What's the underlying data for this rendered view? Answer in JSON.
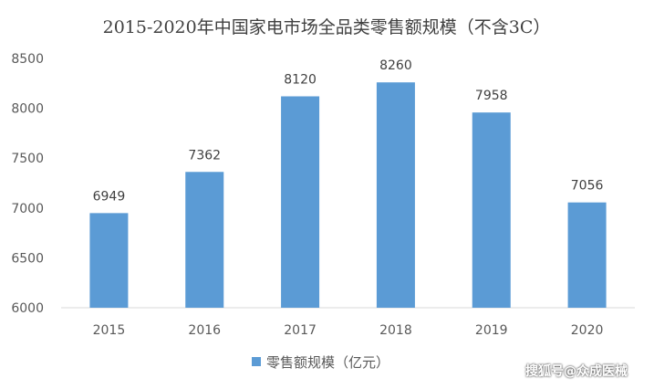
{
  "chart_data": {
    "type": "bar",
    "title": "2015-2020年中国家电市场全品类零售额规模（不含3C）",
    "categories": [
      "2015",
      "2016",
      "2017",
      "2018",
      "2019",
      "2020"
    ],
    "series": [
      {
        "name": "零售额规模（亿元）",
        "values": [
          6949,
          7362,
          8120,
          8260,
          7958,
          7056
        ],
        "color": "#5B9BD5"
      }
    ],
    "ylim": [
      6000,
      8500
    ],
    "yticks": [
      6000,
      6500,
      7000,
      7500,
      8000,
      8500
    ],
    "grid": false,
    "legend": "bottom",
    "data_labels": true
  },
  "watermark": "搜狐号@众成医械"
}
